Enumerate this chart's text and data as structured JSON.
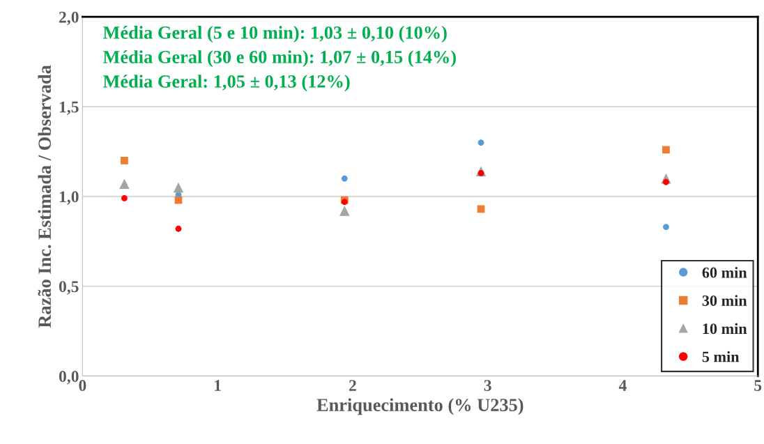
{
  "chart_data": {
    "type": "scatter",
    "xlabel": "Enriquecimento (% U235)",
    "ylabel": "Razão Inc. Estimada / Observada",
    "annotations": [
      "Média Geral (5 e 10 min): 1,03 ± 0,10 (10%)",
      "Média Geral (30 e 60 min): 1,07 ± 0,15 (14%)",
      "Média Geral: 1,05 ± 0,13 (12%)"
    ],
    "x": [
      0.31,
      0.71,
      1.94,
      2.95,
      4.32
    ],
    "series": [
      {
        "name": "60 min",
        "color": "#5b9bd5",
        "marker": "circle",
        "values": [
          null,
          1.01,
          1.1,
          1.3,
          0.83
        ]
      },
      {
        "name": "30 min",
        "color": "#ed7d31",
        "marker": "square",
        "values": [
          1.2,
          0.98,
          0.98,
          0.93,
          1.26
        ]
      },
      {
        "name": "10 min",
        "color": "#a5a5a5",
        "marker": "triangle",
        "values": [
          1.07,
          1.05,
          0.92,
          1.14,
          1.1
        ]
      },
      {
        "name": "5 min",
        "color": "#ff0000",
        "marker": "circle",
        "values": [
          0.99,
          0.82,
          0.97,
          1.13,
          1.08
        ]
      }
    ],
    "xlim": [
      0,
      5
    ],
    "xticks": [
      0,
      1,
      2,
      3,
      4,
      5
    ],
    "ylim": [
      0,
      2
    ],
    "yticks": [
      {
        "value": 0,
        "label": "0,0"
      },
      {
        "value": 0.5,
        "label": "0,5"
      },
      {
        "value": 1,
        "label": "1,0"
      },
      {
        "value": 1.5,
        "label": "1,5"
      },
      {
        "value": 2,
        "label": "2,0"
      }
    ],
    "grid": "y",
    "legend": "bottom right"
  }
}
